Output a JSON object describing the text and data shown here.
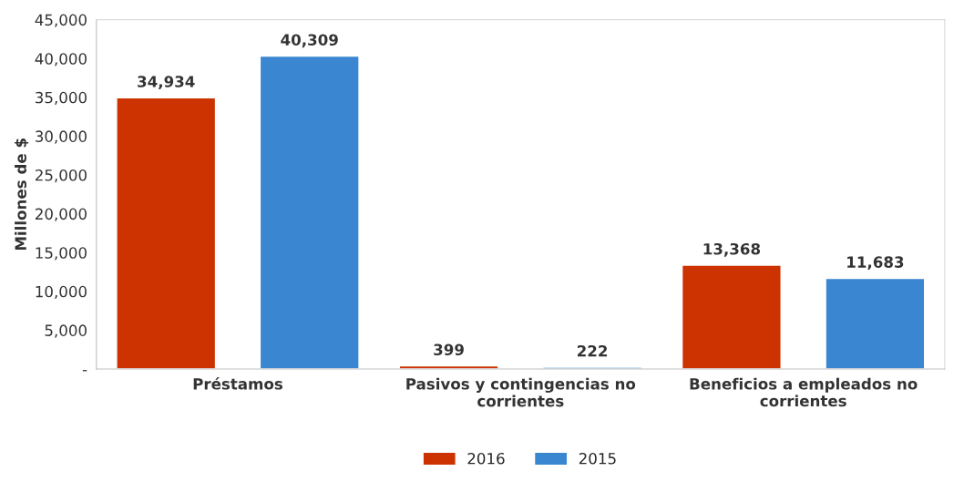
{
  "chart_data": {
    "type": "bar",
    "ylabel": "Millones de $",
    "categories": [
      "Préstamos",
      "Pasivos y contingencias no corrientes",
      "Beneficios a empleados no corrientes"
    ],
    "series": [
      {
        "name": "2016",
        "color": "#cc3300",
        "values": [
          34934,
          399,
          13368
        ],
        "value_labels": [
          "34,934",
          "399",
          "13,368"
        ]
      },
      {
        "name": "2015",
        "color": "#3a86d0",
        "values": [
          40309,
          222,
          11683
        ],
        "value_labels": [
          "40,309",
          "222",
          "11,683"
        ]
      }
    ],
    "ylim": [
      0,
      45000
    ],
    "yticks": [
      {
        "value": 0,
        "label": "-"
      },
      {
        "value": 5000,
        "label": "5,000"
      },
      {
        "value": 10000,
        "label": "10,000"
      },
      {
        "value": 15000,
        "label": "15,000"
      },
      {
        "value": 20000,
        "label": "20,000"
      },
      {
        "value": 25000,
        "label": "25,000"
      },
      {
        "value": 30000,
        "label": "30,000"
      },
      {
        "value": 35000,
        "label": "35,000"
      },
      {
        "value": 40000,
        "label": "40,000"
      },
      {
        "value": 45000,
        "label": "45,000"
      }
    ],
    "grid": false,
    "legend": "bottom"
  }
}
